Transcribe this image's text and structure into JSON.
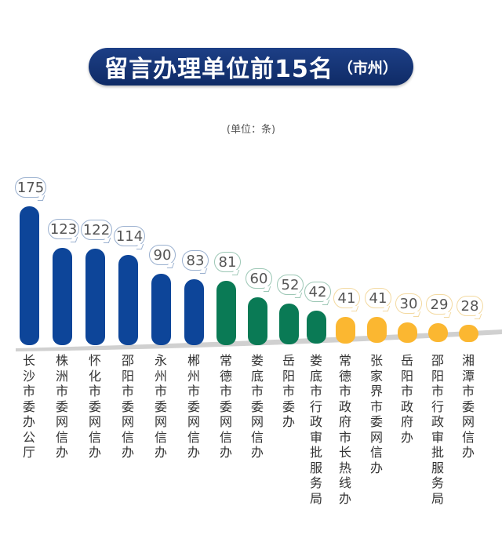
{
  "title": {
    "main": "留言办理单位前15名",
    "sub": "（市州）"
  },
  "unit": "(单位：条)",
  "colors": {
    "tier1": "#0d4599",
    "tier2": "#0a7a55",
    "tier3": "#fbb731",
    "title_bg": "#13306f",
    "bubble_tier1": "#9ab0cf",
    "bubble_tier2": "#9cc7b5",
    "bubble_tier3": "#f3d9a0"
  },
  "chart_data": {
    "type": "bar",
    "title": "留言办理单位前15名（市州）",
    "ylabel": "单位：条",
    "categories": [
      "长沙市委办公厅",
      "株洲市委网信办",
      "怀化市委网信办",
      "邵阳市委网信办",
      "永州市委网信办",
      "郴州市委网信办",
      "常德市委网信办",
      "娄底市委网信办",
      "岳阳市委办",
      "娄底市行政审批服务局",
      "常德市政府市长热线办",
      "张家界市委网信办",
      "岳阳市政府办",
      "邵阳市行政审批服务局",
      "湘潭市委网信办"
    ],
    "values": [
      175,
      123,
      122,
      114,
      90,
      83,
      81,
      60,
      52,
      42,
      41,
      41,
      30,
      29,
      28
    ],
    "color_groups": [
      "tier1",
      "tier1",
      "tier1",
      "tier1",
      "tier1",
      "tier1",
      "tier2",
      "tier2",
      "tier2",
      "tier2",
      "tier3",
      "tier3",
      "tier3",
      "tier3",
      "tier3"
    ],
    "grid": false,
    "legend": "none"
  }
}
